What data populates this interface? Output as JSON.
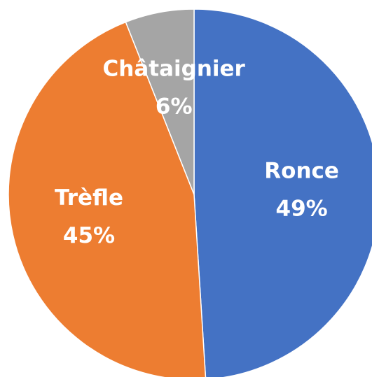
{
  "chart_data": {
    "type": "pie",
    "categories": [
      "Ronce",
      "Trèfle",
      "Châtaignier"
    ],
    "values": [
      49,
      45,
      6
    ],
    "value_labels": [
      "49%",
      "45%",
      "6%"
    ],
    "colors": [
      "#4472c4",
      "#ed7d31",
      "#a5a5a5"
    ]
  }
}
